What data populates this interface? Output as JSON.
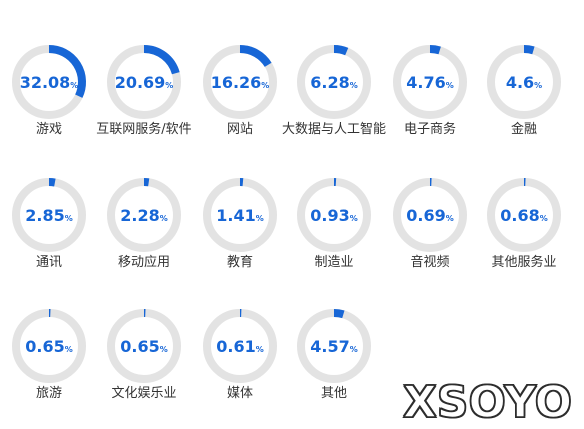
{
  "chart_data": {
    "type": "pie",
    "variant": "donut-grid",
    "unit": "%",
    "items": [
      {
        "label": "游戏",
        "value_text": "32.08",
        "value": 32.08
      },
      {
        "label": "互联网服务/软件",
        "value_text": "20.69",
        "value": 20.69
      },
      {
        "label": "网站",
        "value_text": "16.26",
        "value": 16.26
      },
      {
        "label": "大数据与人工智能",
        "value_text": "6.28",
        "value": 6.28
      },
      {
        "label": "电子商务",
        "value_text": "4.76",
        "value": 4.76
      },
      {
        "label": "金融",
        "value_text": "4.6",
        "value": 4.6
      },
      {
        "label": "通讯",
        "value_text": "2.85",
        "value": 2.85
      },
      {
        "label": "移动应用",
        "value_text": "2.28",
        "value": 2.28
      },
      {
        "label": "教育",
        "value_text": "1.41",
        "value": 1.41
      },
      {
        "label": "制造业",
        "value_text": "0.93",
        "value": 0.93
      },
      {
        "label": "音视频",
        "value_text": "0.69",
        "value": 0.69
      },
      {
        "label": "其他服务业",
        "value_text": "0.68",
        "value": 0.68
      },
      {
        "label": "旅游",
        "value_text": "0.65",
        "value": 0.65
      },
      {
        "label": "文化娱乐业",
        "value_text": "0.65",
        "value": 0.65
      },
      {
        "label": "媒体",
        "value_text": "0.61",
        "value": 0.61
      },
      {
        "label": "其他",
        "value_text": "4.57",
        "value": 4.57
      }
    ],
    "colors": {
      "arc": "#1766d6",
      "track": "#e3e3e3",
      "value_text": "#1766d6",
      "label_text": "#333333"
    }
  },
  "watermark": {
    "text": "XSOYO"
  }
}
